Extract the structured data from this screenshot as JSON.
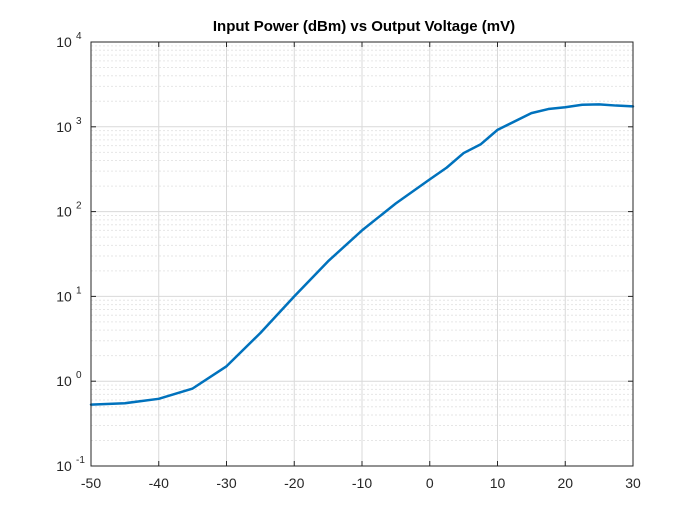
{
  "chart_data": {
    "type": "line",
    "title": "Input Power (dBm) vs Output Voltage (mV)",
    "xlabel": "",
    "ylabel": "",
    "xlim": [
      -50,
      30
    ],
    "ylim": [
      0.1,
      10000
    ],
    "yscale": "log",
    "grid": true,
    "minor_grid": true,
    "x_ticks": [
      -50,
      -40,
      -30,
      -20,
      -10,
      0,
      10,
      20,
      30
    ],
    "x_tick_labels": [
      "-50",
      "-40",
      "-30",
      "-20",
      "-10",
      "0",
      "10",
      "20",
      "30"
    ],
    "y_ticks": [
      0.1,
      1,
      10,
      100,
      1000,
      10000
    ],
    "y_tick_labels": [
      {
        "base": "10",
        "exp": "-1"
      },
      {
        "base": "10",
        "exp": "0"
      },
      {
        "base": "10",
        "exp": "1"
      },
      {
        "base": "10",
        "exp": "2"
      },
      {
        "base": "10",
        "exp": "3"
      },
      {
        "base": "10",
        "exp": "4"
      }
    ],
    "series": [
      {
        "color": "#0072BD",
        "x": [
          -50,
          -45,
          -40,
          -35,
          -30,
          -25,
          -20,
          -15,
          -10,
          -5,
          0,
          2.5,
          5,
          7.5,
          10,
          15,
          17.5,
          20,
          22.5,
          25,
          27.5,
          30
        ],
        "y": [
          0.53,
          0.55,
          0.62,
          0.82,
          1.5,
          3.7,
          10,
          26,
          60,
          125,
          240,
          330,
          490,
          620,
          920,
          1450,
          1620,
          1700,
          1820,
          1840,
          1780,
          1740
        ]
      }
    ]
  }
}
